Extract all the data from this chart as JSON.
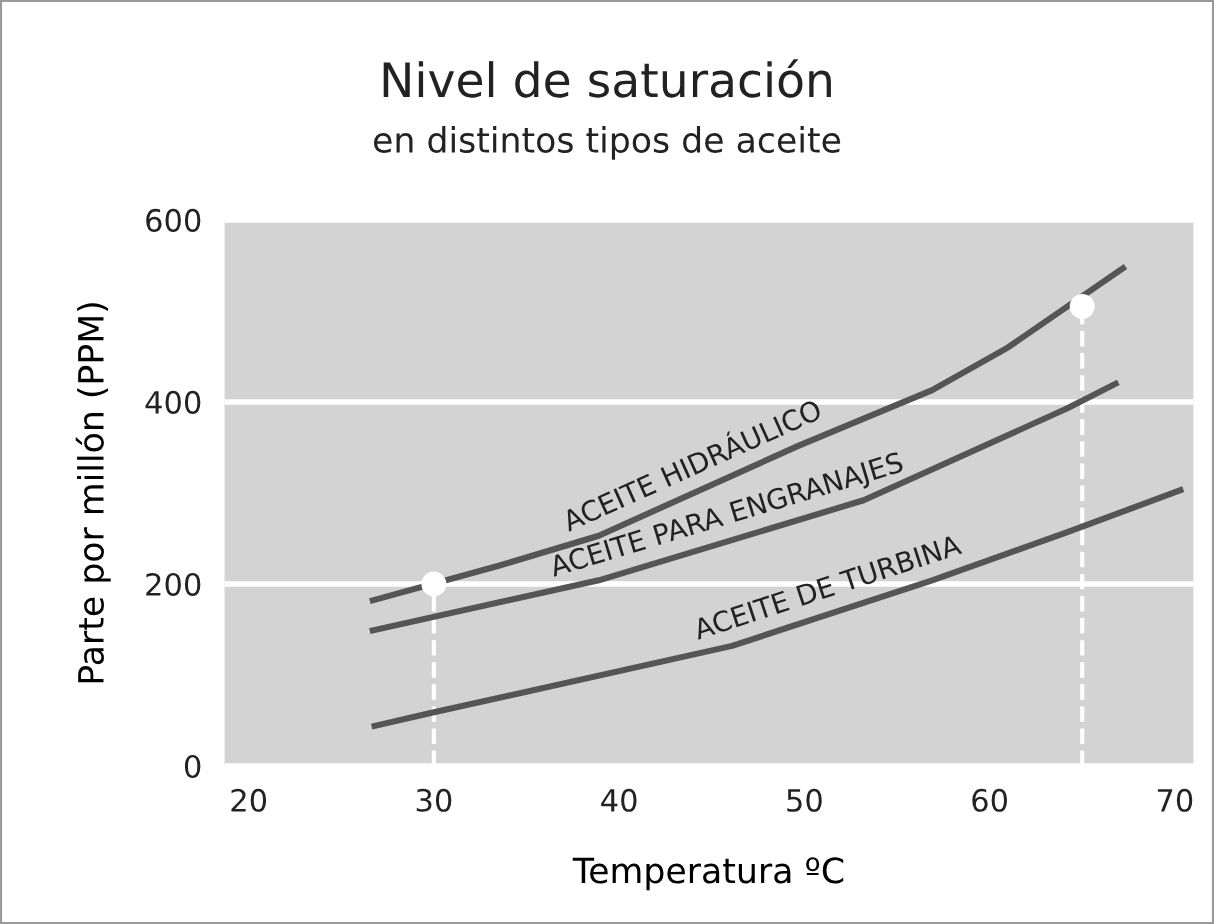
{
  "chart_data": {
    "type": "line",
    "title": "Nivel de saturación",
    "subtitle": "en distintos tipos de aceite",
    "xlabel": "Temperatura ºC",
    "ylabel": "Parte por millón (PPM)",
    "xlim": [
      18.7,
      71
    ],
    "xticks": [
      20,
      30,
      40,
      50,
      60,
      70
    ],
    "ylim": [
      0,
      600
    ],
    "yticks": [
      0,
      200,
      400,
      600
    ],
    "grid": "y",
    "legend": false,
    "marker": "none",
    "line_style": "solid",
    "series": [
      {
        "name": "ACEITE HIDRÁULICO",
        "color": "#555555",
        "x": [
          26.7,
          33.5,
          38.9,
          49.7,
          56.9,
          61,
          67.2
        ],
        "values": [
          182,
          220,
          253,
          352,
          413,
          460,
          547
        ]
      },
      {
        "name": "ACEITE PARA ENGRANAJES",
        "color": "#555555",
        "x": [
          26.7,
          38.9,
          53.2,
          64.2,
          66.8
        ],
        "values": [
          149,
          204,
          292,
          393,
          420
        ]
      },
      {
        "name": "ACEITE DE TURBINA",
        "color": "#555555",
        "x": [
          26.8,
          30,
          46.1,
          56.9,
          64.2,
          70.3
        ],
        "values": [
          44,
          59,
          132,
          204,
          257,
          303
        ]
      },
      {
        "type": "lollipop",
        "color": "#ffffff",
        "line_style": "dashed",
        "marker": "circle",
        "x": [
          30,
          65
        ],
        "values": [
          200,
          505
        ]
      }
    ]
  }
}
